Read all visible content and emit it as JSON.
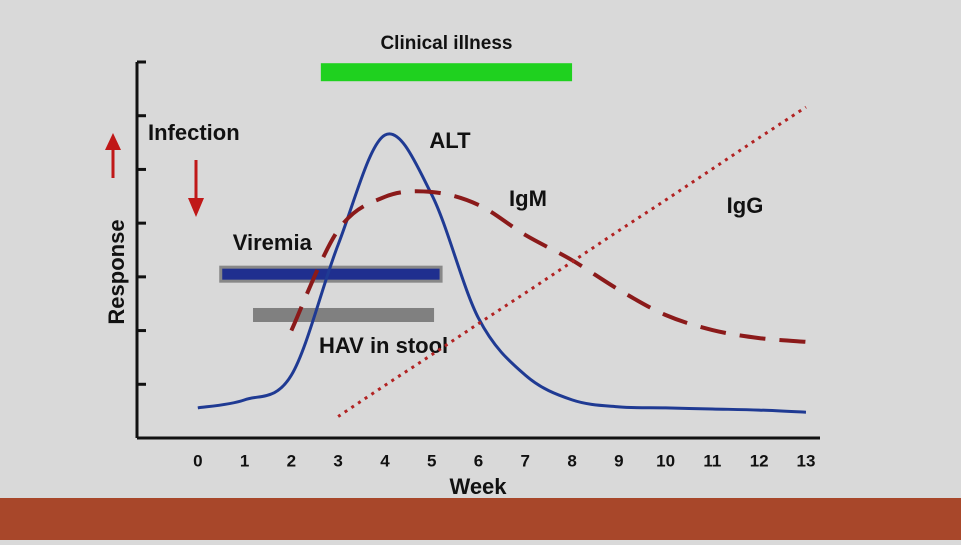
{
  "chart_data": {
    "type": "line",
    "x_label": "Week",
    "y_label": "Response",
    "annotation": "Infection",
    "x": [
      0,
      1,
      2,
      3,
      4,
      5,
      6,
      7,
      8,
      9,
      10,
      11,
      12,
      13
    ],
    "xlim": [
      -1.3,
      13.3
    ],
    "xticks": [
      0,
      1,
      2,
      3,
      4,
      5,
      6,
      7,
      8,
      9,
      10,
      11,
      12,
      13
    ],
    "ylim": [
      0,
      7
    ],
    "yticks": [
      1,
      2,
      3,
      4,
      5,
      6
    ],
    "series": [
      {
        "name": "ALT",
        "color": "#1f3a93",
        "dash": "solid",
        "values": [
          0.56,
          0.71,
          1.17,
          3.6,
          5.64,
          4.53,
          2.23,
          1.17,
          0.71,
          0.58,
          0.56,
          0.54,
          0.52,
          0.48
        ]
      },
      {
        "name": "IgM",
        "color": "#8b1a1a",
        "dash": "dashed",
        "values": [
          null,
          null,
          2.0,
          3.87,
          4.49,
          4.58,
          4.34,
          3.78,
          3.31,
          2.76,
          2.29,
          2.01,
          1.86,
          1.79
        ]
      },
      {
        "name": "IgG",
        "color": "#b22222",
        "dash": "dotted",
        "values": [
          null,
          null,
          null,
          0.4,
          0.98,
          1.55,
          2.13,
          2.7,
          3.28,
          3.86,
          4.43,
          5.01,
          5.59,
          6.16
        ]
      }
    ],
    "bars": [
      {
        "label": "Clinical illness",
        "start": 2.63,
        "end": 8.0,
        "level": 6.81,
        "color": "#1fd11f"
      },
      {
        "label": "Viremia",
        "start": 0.49,
        "end": 5.2,
        "level": 3.05,
        "color": "#1f2f8f"
      },
      {
        "label": "HAV in stool",
        "start": 1.18,
        "end": 5.05,
        "level": 2.29,
        "color": "#808080"
      }
    ]
  }
}
